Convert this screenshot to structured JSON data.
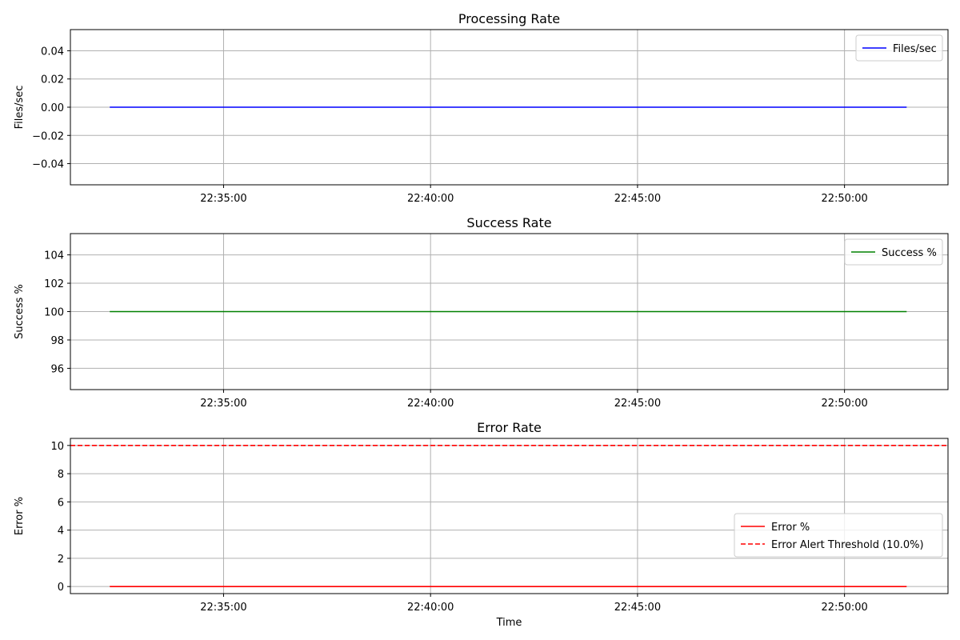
{
  "chart_data": [
    {
      "type": "line",
      "title": "Processing Rate",
      "xlabel": "",
      "ylabel": "Files/sec",
      "x_ticks": [
        "22:35:00",
        "22:40:00",
        "22:45:00",
        "22:50:00"
      ],
      "y_ticks": [
        "−0.04",
        "−0.02",
        "0.00",
        "0.02",
        "0.04"
      ],
      "xlim": [
        "22:31:18",
        "22:52:30"
      ],
      "ylim": [
        -0.055,
        0.055
      ],
      "grid": true,
      "legend_position": "top-right",
      "series": [
        {
          "name": "Files/sec",
          "color": "#0000ff",
          "dash": "solid",
          "x": [
            "22:32:15",
            "22:51:30"
          ],
          "y": [
            0,
            0
          ]
        }
      ]
    },
    {
      "type": "line",
      "title": "Success Rate",
      "xlabel": "",
      "ylabel": "Success %",
      "x_ticks": [
        "22:35:00",
        "22:40:00",
        "22:45:00",
        "22:50:00"
      ],
      "y_ticks": [
        "96",
        "98",
        "100",
        "102",
        "104"
      ],
      "xlim": [
        "22:31:18",
        "22:52:30"
      ],
      "ylim": [
        94.5,
        105.5
      ],
      "grid": true,
      "legend_position": "top-right",
      "series": [
        {
          "name": "Success %",
          "color": "#008000",
          "dash": "solid",
          "x": [
            "22:32:15",
            "22:51:30"
          ],
          "y": [
            100,
            100
          ]
        }
      ]
    },
    {
      "type": "line",
      "title": "Error Rate",
      "xlabel": "Time",
      "ylabel": "Error %",
      "x_ticks": [
        "22:35:00",
        "22:40:00",
        "22:45:00",
        "22:50:00"
      ],
      "y_ticks": [
        "0",
        "2",
        "4",
        "6",
        "8",
        "10"
      ],
      "xlim": [
        "22:31:18",
        "22:52:30"
      ],
      "ylim": [
        -0.5,
        10.5
      ],
      "grid": true,
      "legend_position": "center-right",
      "series": [
        {
          "name": "Error %",
          "color": "#ff0000",
          "dash": "solid",
          "x": [
            "22:32:15",
            "22:51:30"
          ],
          "y": [
            0,
            0
          ]
        },
        {
          "name": "Error Alert Threshold (10.0%)",
          "color": "#ff0000",
          "dash": "dashed",
          "x": [
            "22:31:18",
            "22:52:30"
          ],
          "y": [
            10,
            10
          ]
        }
      ]
    }
  ]
}
